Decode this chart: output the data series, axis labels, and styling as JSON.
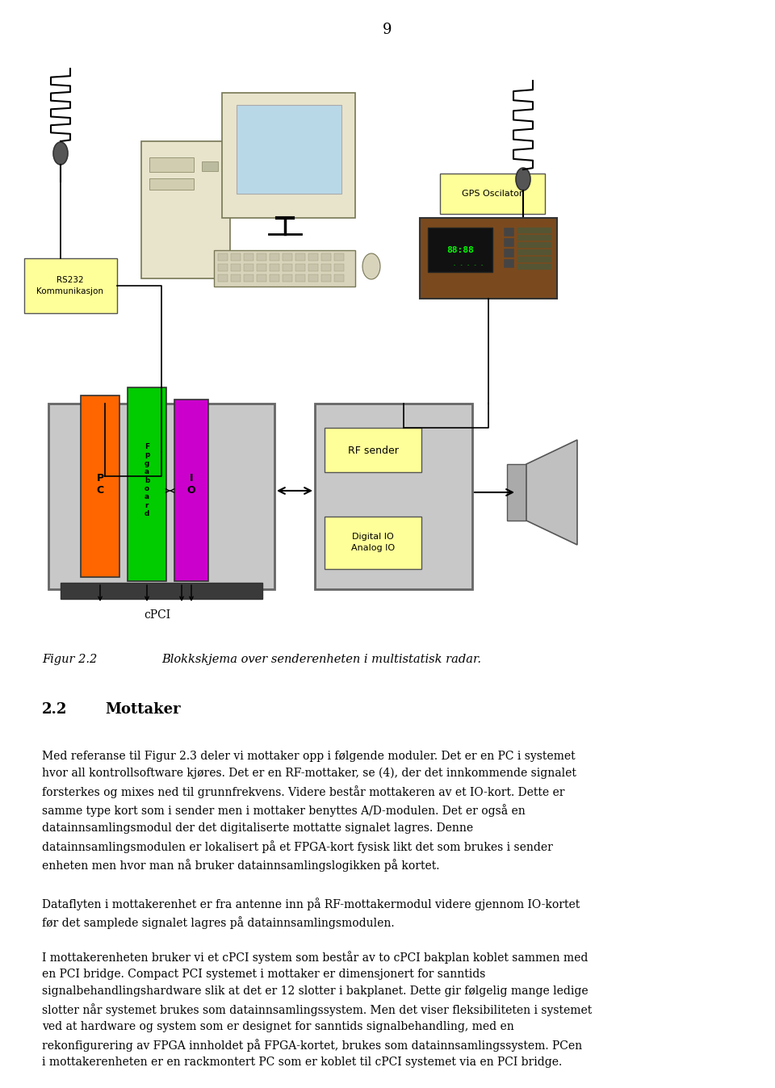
{
  "page_number": "9",
  "bg": "#ffffff",
  "fig_caption_label": "Figur 2.2",
  "fig_caption_text": "Blokkskjema over senderenheten i multistatisk radar.",
  "section_num": "2.2",
  "section_title": "Mottaker",
  "para1": "Med referanse til Figur 2.3 deler vi mottaker opp i følgende moduler. Det er en PC i systemet\nhvor all kontrollsoftware kjøres. Det er en RF-mottaker, se (4), der det innkommende signalet\nforsterkes og mixes ned til grunnfrekvens. Videre består mottakeren av et IO-kort. Dette er\nsamme type kort som i sender men i mottaker benyttes A/D-modulen. Det er også en\ndatainnsamlingsmodul der det digitaliserte mottatte signalet lagres. Denne\ndatainnsamlingsmodulen er lokalisert på et FPGA-kort fysisk likt det som brukes i sender\nenheten men hvor man nå bruker datainnsamlingslogikken på kortet.",
  "para2": "Dataflyten i mottakerenhet er fra antenne inn på RF-mottakermodul videre gjennom IO-kortet\nfør det samplede signalet lagres på datainnsamlingsmodulen.",
  "para3": "I mottakerenheten bruker vi et cPCI system som består av to cPCI bakplan koblet sammen med\nen PCI bridge. Compact PCI systemet i mottaker er dimensjonert for sanntids\nsignalbehandlingshardware slik at det er 12 slotter i bakplanet. Dette gir følgelig mange ledige\nslotter når systemet brukes som datainnsamlingssystem. Men det viser fleksibiliteten i systemet\nved at hardware og system som er designet for sanntids signalbehandling, med en\nrekonfigurering av FPGA innholdet på FPGA-kortet, brukes som datainnsamlingssystem. PCen\ni mottakerenheten er en rackmontert PC som er koblet til cPCI systemet via en PCI bridge."
}
